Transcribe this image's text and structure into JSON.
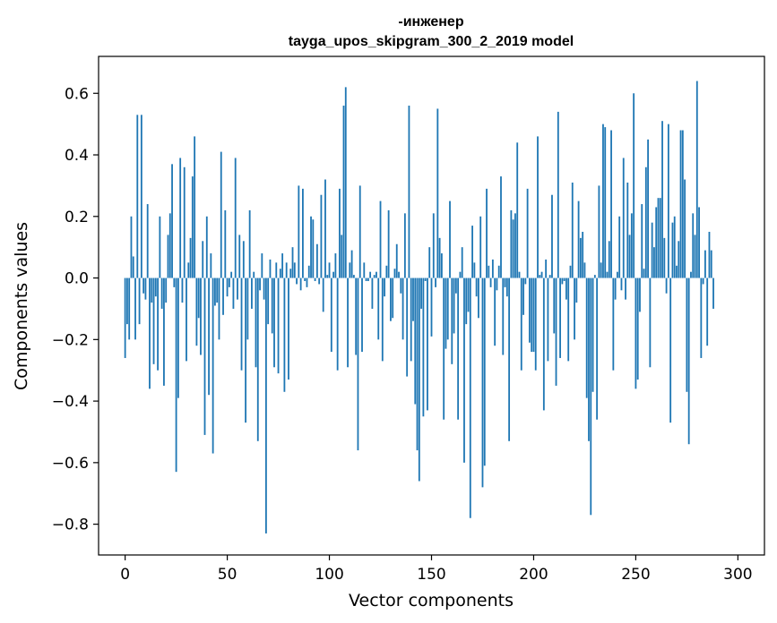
{
  "chart_data": {
    "type": "bar",
    "title": "-инженер",
    "subtitle": "tayga_upos_skipgram_300_2_2019 model",
    "xlabel": "Vector components",
    "ylabel": "Components values",
    "xlim": [
      -13,
      313
    ],
    "ylim": [
      -0.9,
      0.72
    ],
    "xticks": [
      0,
      50,
      100,
      150,
      200,
      250,
      300
    ],
    "xtick_labels": [
      "0",
      "50",
      "100",
      "150",
      "200",
      "250",
      "300"
    ],
    "yticks": [
      -0.8,
      -0.6,
      -0.4,
      -0.2,
      0.0,
      0.2,
      0.4,
      0.6
    ],
    "ytick_labels": [
      "−0.8",
      "−0.6",
      "−0.4",
      "−0.2",
      "0.0",
      "0.2",
      "0.4",
      "0.6"
    ],
    "bar_color": "#1f77b4",
    "grid": false,
    "values": [
      -0.26,
      -0.15,
      -0.2,
      0.2,
      0.07,
      -0.2,
      0.53,
      -0.15,
      0.53,
      -0.05,
      -0.07,
      0.24,
      -0.36,
      -0.08,
      -0.28,
      -0.06,
      -0.3,
      0.2,
      -0.1,
      -0.35,
      -0.08,
      0.14,
      0.21,
      0.37,
      -0.03,
      -0.63,
      -0.39,
      0.39,
      -0.08,
      0.36,
      -0.27,
      0.05,
      0.13,
      0.33,
      0.46,
      -0.22,
      -0.13,
      -0.25,
      0.12,
      -0.51,
      0.2,
      -0.38,
      0.08,
      -0.57,
      -0.09,
      -0.08,
      -0.2,
      0.41,
      -0.12,
      0.22,
      -0.06,
      -0.03,
      0.02,
      -0.1,
      0.39,
      -0.07,
      0.14,
      -0.3,
      0.12,
      -0.47,
      -0.2,
      0.22,
      -0.1,
      0.02,
      -0.29,
      -0.53,
      -0.04,
      0.08,
      -0.07,
      -0.83,
      -0.15,
      0.06,
      -0.18,
      -0.29,
      0.05,
      -0.31,
      0.03,
      0.08,
      -0.37,
      0.05,
      -0.33,
      0.03,
      0.1,
      0.05,
      -0.02,
      0.3,
      -0.04,
      0.29,
      -0.01,
      -0.03,
      0.04,
      0.2,
      0.19,
      -0.01,
      0.11,
      -0.02,
      0.27,
      -0.11,
      0.32,
      0.01,
      0.05,
      -0.24,
      0.02,
      0.08,
      -0.3,
      0.29,
      0.14,
      0.56,
      0.62,
      -0.29,
      0.05,
      0.09,
      0.01,
      -0.25,
      -0.56,
      0.3,
      -0.24,
      0.05,
      -0.01,
      -0.01,
      0.02,
      -0.1,
      0.01,
      0.02,
      -0.2,
      0.25,
      -0.27,
      -0.06,
      0.04,
      0.22,
      -0.14,
      -0.13,
      0.03,
      0.11,
      0.02,
      -0.05,
      -0.2,
      0.21,
      -0.32,
      0.56,
      -0.27,
      -0.14,
      -0.41,
      -0.56,
      -0.66,
      -0.1,
      -0.45,
      -0.01,
      -0.43,
      0.1,
      -0.19,
      0.21,
      -0.03,
      0.55,
      0.13,
      0.08,
      -0.46,
      -0.23,
      -0.2,
      0.25,
      -0.28,
      -0.18,
      -0.05,
      -0.46,
      0.02,
      0.1,
      -0.6,
      -0.15,
      -0.11,
      -0.78,
      0.17,
      0.05,
      -0.06,
      -0.13,
      0.2,
      -0.68,
      -0.61,
      0.29,
      0.04,
      -0.03,
      0.06,
      -0.22,
      -0.04,
      0.04,
      0.33,
      -0.25,
      -0.03,
      -0.06,
      -0.53,
      0.22,
      0.19,
      0.21,
      0.44,
      0.02,
      -0.3,
      -0.12,
      -0.02,
      0.29,
      -0.21,
      -0.24,
      -0.24,
      -0.3,
      0.46,
      0.01,
      0.02,
      -0.43,
      0.06,
      -0.27,
      0.01,
      0.27,
      -0.18,
      -0.35,
      0.54,
      -0.26,
      -0.02,
      -0.01,
      -0.07,
      -0.27,
      0.04,
      0.31,
      -0.2,
      -0.08,
      0.25,
      0.13,
      0.15,
      0.05,
      -0.39,
      -0.53,
      -0.77,
      -0.37,
      0.01,
      -0.46,
      0.3,
      0.05,
      0.5,
      0.49,
      0.02,
      0.12,
      0.48,
      -0.3,
      -0.07,
      0.02,
      0.2,
      -0.04,
      0.39,
      -0.07,
      0.31,
      0.14,
      0.21,
      0.6,
      -0.36,
      -0.33,
      -0.11,
      0.24,
      0.03,
      0.36,
      0.45,
      -0.29,
      0.18,
      0.1,
      0.23,
      0.26,
      0.26,
      0.51,
      0.13,
      -0.05,
      0.5,
      -0.47,
      0.18,
      0.2,
      0.04,
      0.12,
      0.48,
      0.48,
      0.32,
      -0.37,
      -0.54,
      0.02,
      0.21,
      0.14,
      0.64,
      0.23,
      -0.26,
      -0.02,
      0.09,
      -0.22,
      0.15,
      0.09,
      -0.1
    ]
  }
}
